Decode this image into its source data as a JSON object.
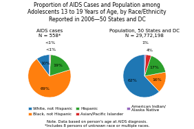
{
  "chart_data": {
    "type": "pie",
    "title": "Proportion of AIDS Cases and Population among\nAdolescents 13 to 19 Years of Age, by Race/Ethnicity\nReported in 2006—50 States and DC",
    "categories": [
      "White, not Hispanic",
      "Black, not Hispanic",
      "Hispanic",
      "Asian/Pacific Islander",
      "American Indian/\nAlaska Native"
    ],
    "series": [
      {
        "name": "AIDS cases\nN = 558*",
        "values": [
          10,
          69,
          19,
          0.5,
          0.5
        ],
        "value_labels": [
          "10%",
          "69%",
          "19%",
          "<1%",
          "<1%"
        ]
      },
      {
        "name": "Population, 50 States and DC\nN = 29,772,198",
        "values": [
          62,
          16,
          17,
          4,
          1
        ],
        "value_labels": [
          "62%",
          "16%",
          "17%",
          "4%",
          "1%"
        ]
      }
    ],
    "annotations": [
      "Note. Data based on person's age at AIDS diagnosis.\n*Includes 8 persons of unknown race or multiple races."
    ],
    "legend": "lower center"
  }
}
